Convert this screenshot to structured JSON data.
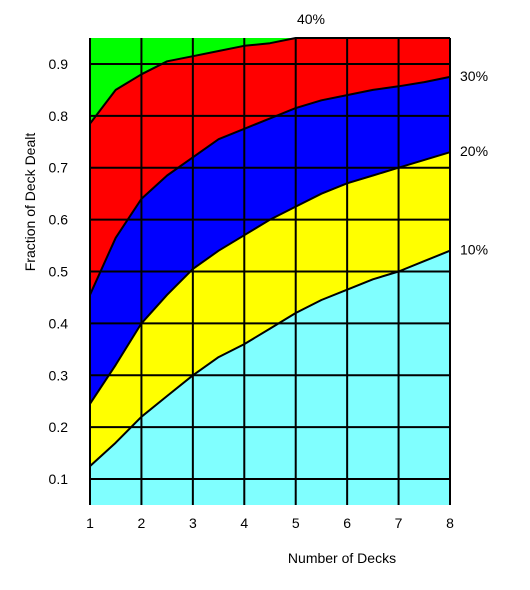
{
  "chart_data": {
    "type": "area",
    "title": "",
    "xlabel": "Number of Decks",
    "ylabel": "Fraction of Deck Dealt",
    "xlim": [
      1,
      8
    ],
    "ylim": [
      0.05,
      0.95
    ],
    "x_ticks": [
      "1",
      "2",
      "3",
      "4",
      "5",
      "6",
      "7",
      "8"
    ],
    "y_ticks": [
      "0.1",
      "0.2",
      "0.3",
      "0.4",
      "0.5",
      "0.6",
      "0.7",
      "0.8",
      "0.9"
    ],
    "grid": true,
    "x": [
      1,
      1.5,
      2,
      2.5,
      3,
      3.5,
      4,
      4.5,
      5,
      5.5,
      6,
      6.5,
      7,
      7.5,
      8
    ],
    "series": [
      {
        "name": "10%",
        "color": "#80ffff",
        "values": [
          0.125,
          0.17,
          0.22,
          0.26,
          0.3,
          0.335,
          0.36,
          0.39,
          0.42,
          0.445,
          0.465,
          0.485,
          0.5,
          0.52,
          0.54
        ]
      },
      {
        "name": "20%",
        "color": "#ffff00",
        "values": [
          0.245,
          0.32,
          0.4,
          0.455,
          0.505,
          0.54,
          0.57,
          0.6,
          0.625,
          0.65,
          0.67,
          0.685,
          0.7,
          0.715,
          0.73
        ]
      },
      {
        "name": "30%",
        "color": "#0000ff",
        "values": [
          0.455,
          0.565,
          0.64,
          0.685,
          0.72,
          0.755,
          0.775,
          0.795,
          0.815,
          0.83,
          0.84,
          0.85,
          0.857,
          0.865,
          0.875
        ]
      },
      {
        "name": "40%",
        "color": "#ff0000",
        "values": [
          0.785,
          0.85,
          0.88,
          0.905,
          0.915,
          0.925,
          0.935,
          0.94,
          0.95,
          0.95,
          0.95,
          0.95,
          0.95,
          0.95,
          0.95
        ]
      }
    ],
    "top_fill_color": "#00ff00"
  }
}
